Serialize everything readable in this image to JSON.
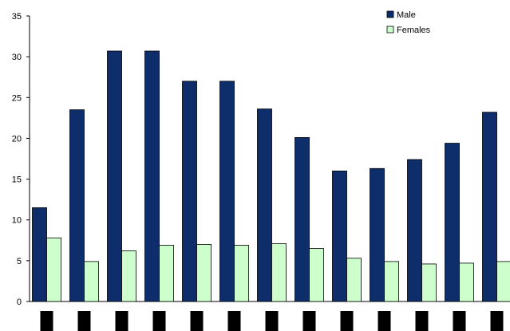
{
  "chart_data": {
    "type": "bar",
    "title": "",
    "xlabel": "",
    "ylabel": "",
    "ylim": [
      0,
      35
    ],
    "yticks": [
      0,
      5,
      10,
      15,
      20,
      25,
      30,
      35
    ],
    "categories": [
      "",
      "",
      "",
      "",
      "",
      "",
      "",
      "",
      "",
      "",
      "",
      "",
      ""
    ],
    "series": [
      {
        "name": "Male",
        "color": "#0d2d6b",
        "values": [
          11.5,
          23.5,
          30.7,
          30.7,
          27.0,
          27.0,
          23.6,
          20.1,
          16.0,
          16.3,
          17.4,
          19.4,
          23.2
        ]
      },
      {
        "name": "Females",
        "color": "#ccffcc",
        "values": [
          7.8,
          4.9,
          6.2,
          6.9,
          7.0,
          6.9,
          7.1,
          6.5,
          5.3,
          4.9,
          4.6,
          4.7,
          4.9
        ]
      }
    ],
    "legend": "top-right",
    "grid": false
  }
}
